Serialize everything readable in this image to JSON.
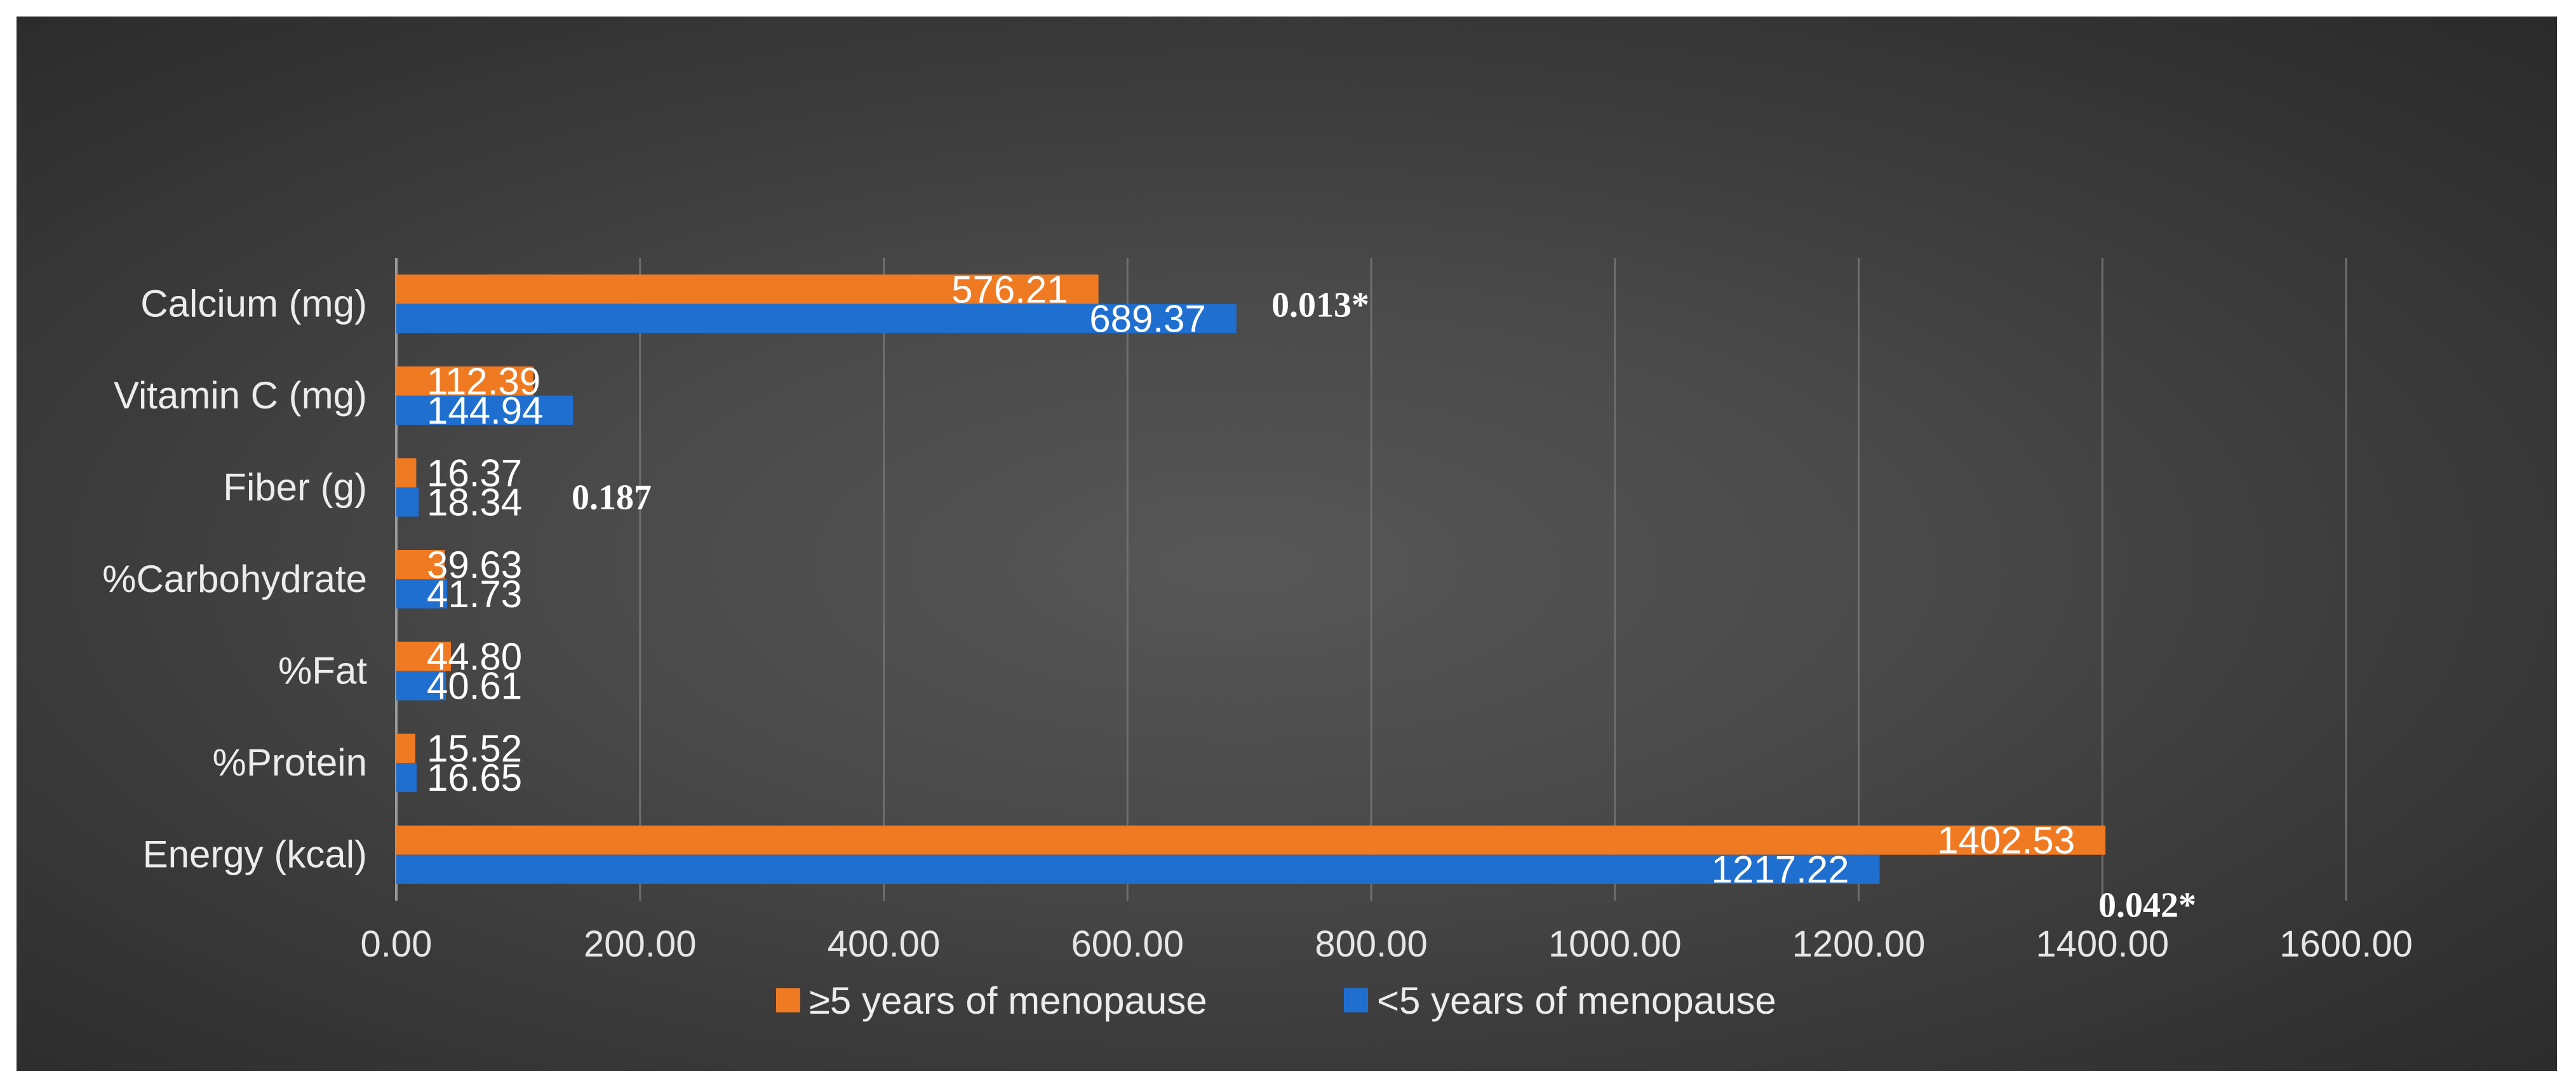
{
  "chart_data": {
    "type": "bar",
    "orientation": "horizontal",
    "categories": [
      "Energy (kcal)",
      "%Protein",
      "%Fat",
      "%Carbohydrate",
      "Fiber (g)",
      "Vitamin C (mg)",
      "Calcium (mg)"
    ],
    "series": [
      {
        "name": "≥5 years of menopause",
        "color": "#f07a22",
        "values": [
          1402.53,
          15.52,
          44.8,
          39.63,
          16.37,
          112.39,
          576.21
        ],
        "labels": [
          "1402.53",
          "15.52",
          "44.80",
          "39.63",
          "16.37",
          "112.39",
          "576.21"
        ]
      },
      {
        "name": "<5 years of menopause",
        "color": "#1f6fd1",
        "values": [
          1217.22,
          16.65,
          40.61,
          41.73,
          18.34,
          144.94,
          689.37
        ],
        "labels": [
          "1217.22",
          "16.65",
          "40.61",
          "41.73",
          "18.34",
          "144.94",
          "689.37"
        ]
      }
    ],
    "xlim": [
      0,
      1600
    ],
    "xticks": [
      "0.00",
      "200.00",
      "400.00",
      "600.00",
      "800.00",
      "1000.00",
      "1200.00",
      "1400.00",
      "1600.00"
    ],
    "grid": true,
    "legend_position": "bottom",
    "annotations": [
      {
        "category": "Calcium (mg)",
        "text": "0.013*"
      },
      {
        "category": "Fiber (g)",
        "text": "0.187"
      },
      {
        "category": "Energy (kcal)",
        "text": "0.042*"
      }
    ]
  }
}
